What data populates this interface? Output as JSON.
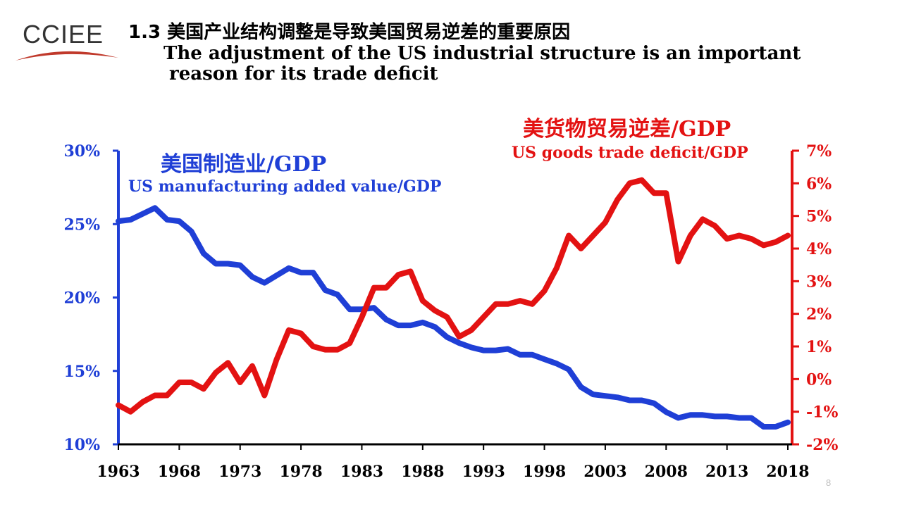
{
  "logo": {
    "text": "CCIEE",
    "accent_color": "#c0392b"
  },
  "title": {
    "cn": "1.3 美国产业结构调整是导致美国贸易逆差的重要原因",
    "en_line1": "The adjustment of the US industrial structure is an important",
    "en_line2": "reason for its trade deficit"
  },
  "page_number": "8",
  "chart_data": {
    "type": "line",
    "x_ticks": [
      "1963",
      "1968",
      "1973",
      "1978",
      "1983",
      "1988",
      "1993",
      "1998",
      "2003",
      "2008",
      "2013",
      "2018"
    ],
    "xlim": [
      1963,
      2018
    ],
    "left_axis": {
      "ticks": [
        "10%",
        "15%",
        "20%",
        "25%",
        "30%"
      ],
      "ylim": [
        10,
        30
      ],
      "color": "#1f3fd6"
    },
    "right_axis": {
      "ticks": [
        "-2%",
        "-1%",
        "0%",
        "1%",
        "2%",
        "3%",
        "4%",
        "5%",
        "6%",
        "7%"
      ],
      "ylim": [
        -2,
        7
      ],
      "color": "#e31212"
    },
    "series": [
      {
        "name": "US manufacturing added value/GDP",
        "name_cn": "美国制造业/GDP",
        "axis": "left",
        "color": "#1f3fd6",
        "x": [
          1963,
          1964,
          1965,
          1966,
          1967,
          1968,
          1969,
          1970,
          1971,
          1972,
          1973,
          1974,
          1975,
          1976,
          1977,
          1978,
          1979,
          1980,
          1981,
          1982,
          1983,
          1984,
          1985,
          1986,
          1987,
          1988,
          1989,
          1990,
          1991,
          1992,
          1993,
          1994,
          1995,
          1996,
          1997,
          1998,
          1999,
          2000,
          2001,
          2002,
          2003,
          2004,
          2005,
          2006,
          2007,
          2008,
          2009,
          2010,
          2011,
          2012,
          2013,
          2014,
          2015,
          2016,
          2017,
          2018
        ],
        "values": [
          25.2,
          25.3,
          25.7,
          26.1,
          25.3,
          25.2,
          24.5,
          23.0,
          22.3,
          22.3,
          22.2,
          21.4,
          21.0,
          21.5,
          22.0,
          21.7,
          21.7,
          20.5,
          20.2,
          19.2,
          19.2,
          19.3,
          18.5,
          18.1,
          18.1,
          18.3,
          18.0,
          17.3,
          16.9,
          16.6,
          16.4,
          16.4,
          16.5,
          16.1,
          16.1,
          15.8,
          15.5,
          15.1,
          13.9,
          13.4,
          13.3,
          13.2,
          13.0,
          13.0,
          12.8,
          12.2,
          11.8,
          12.0,
          12.0,
          11.9,
          11.9,
          11.8,
          11.8,
          11.2,
          11.2,
          11.5
        ]
      },
      {
        "name": "US goods trade deficit/GDP",
        "name_cn": "美货物贸易逆差/GDP",
        "axis": "right",
        "color": "#e31212",
        "x": [
          1963,
          1964,
          1965,
          1966,
          1967,
          1968,
          1969,
          1970,
          1971,
          1972,
          1973,
          1974,
          1975,
          1976,
          1977,
          1978,
          1979,
          1980,
          1981,
          1982,
          1983,
          1984,
          1985,
          1986,
          1987,
          1988,
          1989,
          1990,
          1991,
          1992,
          1993,
          1994,
          1995,
          1996,
          1997,
          1998,
          1999,
          2000,
          2001,
          2002,
          2003,
          2004,
          2005,
          2006,
          2007,
          2008,
          2009,
          2010,
          2011,
          2012,
          2013,
          2014,
          2015,
          2016,
          2017,
          2018
        ],
        "values": [
          -0.8,
          -1.0,
          -0.7,
          -0.5,
          -0.5,
          -0.1,
          -0.1,
          -0.3,
          0.2,
          0.5,
          -0.1,
          0.4,
          -0.5,
          0.6,
          1.5,
          1.4,
          1.0,
          0.9,
          0.9,
          1.1,
          1.9,
          2.8,
          2.8,
          3.2,
          3.3,
          2.4,
          2.1,
          1.9,
          1.3,
          1.5,
          1.9,
          2.3,
          2.3,
          2.4,
          2.3,
          2.7,
          3.4,
          4.4,
          4.0,
          4.4,
          4.8,
          5.5,
          6.0,
          6.1,
          5.7,
          5.7,
          3.6,
          4.4,
          4.9,
          4.7,
          4.3,
          4.4,
          4.3,
          4.1,
          4.2,
          4.4
        ]
      }
    ]
  }
}
